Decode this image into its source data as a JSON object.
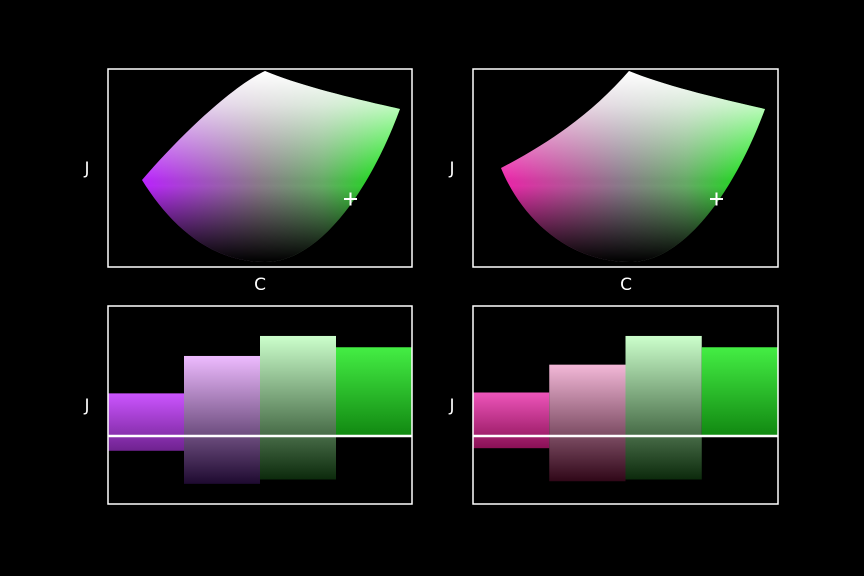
{
  "colors": {
    "background": "#000000",
    "frame": "#ffffff",
    "marker": "#ffffff",
    "baseline": "#ffffff",
    "green": "#00ee00",
    "white": "#ffffff"
  },
  "chart_data": [
    {
      "type": "area",
      "panel": "top-left",
      "xlabel": "C",
      "ylabel": "J",
      "fill": "gamut-gradient",
      "edge_color": "#bb22ff",
      "marker": {
        "symbol": "+",
        "position": "lower-right"
      }
    },
    {
      "type": "area",
      "panel": "top-right",
      "xlabel": "C",
      "ylabel": "J",
      "fill": "gamut-gradient",
      "edge_color": "#ee22aa",
      "marker": {
        "symbol": "+",
        "position": "lower-right"
      }
    },
    {
      "type": "bar",
      "panel": "bottom-left",
      "ylabel": "J",
      "ylim": [
        -1,
        1
      ],
      "baseline": 0,
      "bars": [
        {
          "top": 0.49,
          "bottom": -0.17,
          "top_color": "#cc55ff",
          "bottom_color": "#6f2290"
        },
        {
          "top": 0.92,
          "bottom": -0.55,
          "top_color": "#eebbff",
          "bottom_color": "#1e0a30"
        },
        {
          "top": 1.15,
          "bottom": -0.5,
          "top_color": "#ccffcc",
          "bottom_color": "#0c2a0c"
        },
        {
          "top": 1.02,
          "bottom": 0.0,
          "top_color": "#44ee44",
          "bottom_color": "#118811"
        }
      ]
    },
    {
      "type": "bar",
      "panel": "bottom-right",
      "ylabel": "J",
      "ylim": [
        -1,
        1
      ],
      "baseline": 0,
      "bars": [
        {
          "top": 0.5,
          "bottom": -0.14,
          "top_color": "#ee55bb",
          "bottom_color": "#8a1055"
        },
        {
          "top": 0.82,
          "bottom": -0.52,
          "top_color": "#f3b8d8",
          "bottom_color": "#300718"
        },
        {
          "top": 1.15,
          "bottom": -0.5,
          "top_color": "#ccffcc",
          "bottom_color": "#0c2a0c"
        },
        {
          "top": 1.02,
          "bottom": 0.0,
          "top_color": "#44ee44",
          "bottom_color": "#118811"
        }
      ]
    }
  ]
}
